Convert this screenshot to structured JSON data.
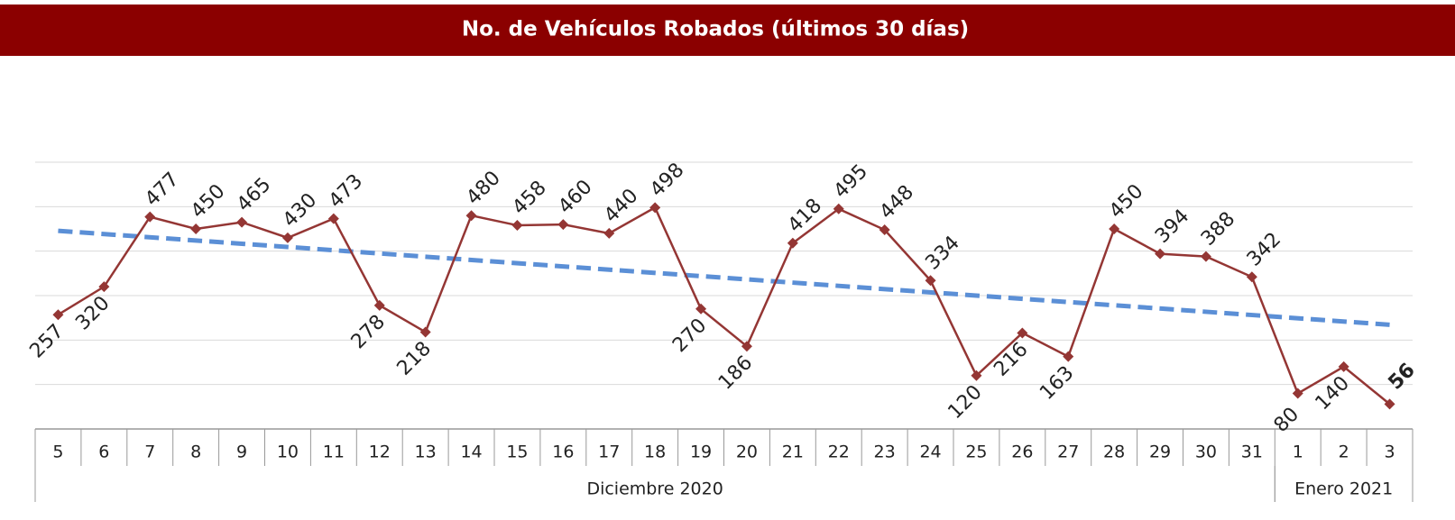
{
  "chart_data": {
    "type": "line",
    "title": "No. de Vehículos Robados (últimos 30 días)",
    "categories": [
      "5",
      "6",
      "7",
      "8",
      "9",
      "10",
      "11",
      "12",
      "13",
      "14",
      "15",
      "16",
      "17",
      "18",
      "19",
      "20",
      "21",
      "22",
      "23",
      "24",
      "25",
      "26",
      "27",
      "28",
      "29",
      "30",
      "31",
      "1",
      "2",
      "3"
    ],
    "groups": [
      {
        "name": "Diciembre 2020",
        "count": 27
      },
      {
        "name": "Enero 2021",
        "count": 3
      }
    ],
    "series": [
      {
        "color": "#943634",
        "values": [
          257,
          320,
          477,
          450,
          465,
          430,
          473,
          278,
          218,
          480,
          458,
          460,
          440,
          498,
          270,
          186,
          418,
          495,
          448,
          334,
          120,
          216,
          163,
          450,
          394,
          388,
          342,
          80,
          140,
          56
        ]
      }
    ],
    "trendline": {
      "type": "linear",
      "color": "#5b8fd6"
    },
    "ylim": [
      0,
      600
    ],
    "yticks": [
      100,
      200,
      300,
      400,
      500,
      600
    ],
    "grid": true
  }
}
